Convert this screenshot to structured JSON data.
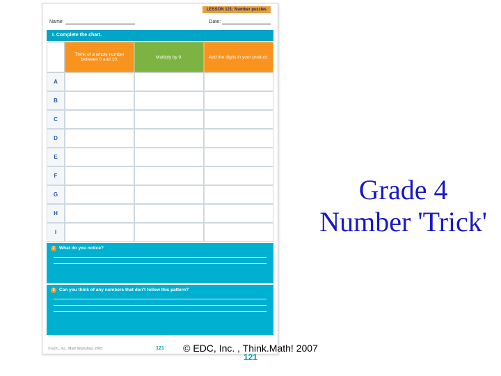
{
  "slide": {
    "title_line1": "Grade 4",
    "title_line2": "Number 'Trick'",
    "title_color": "#1818c8",
    "title_fontsize": 40,
    "footer_copyright": "© EDC, Inc. , Think.Math! 2007",
    "footer_page": "121"
  },
  "worksheet": {
    "lesson_badge": "LESSON 121: Number puzzles",
    "name_label": "Name:",
    "date_label": "Date:",
    "section_title": "I. Complete the chart.",
    "header": {
      "cells": [
        {
          "text": "Think of a whole number between 0 and 10.",
          "bg": "#f7931e"
        },
        {
          "text": "Multiply by 9.",
          "bg": "#7cb342"
        },
        {
          "text": "Add the digits in your product.",
          "bg": "#f7931e"
        }
      ]
    },
    "row_labels": [
      "A",
      "B",
      "C",
      "D",
      "E",
      "F",
      "G",
      "H",
      "I"
    ],
    "row_label_color": "#2a5aa0",
    "grid_border_color": "#cfd8e0",
    "q1": {
      "bullet": "2",
      "text": "What do you notice?",
      "lines": 2
    },
    "q2": {
      "bullet": "3",
      "text": "Can you think of any numbers that don't follow this pattern?",
      "lines": 3
    },
    "page_number": "121",
    "footer_left": "© EDC, Inc., Math Workshop, 2005",
    "section_bg": "#00a5c8",
    "question_bg": "#00b0d0"
  }
}
